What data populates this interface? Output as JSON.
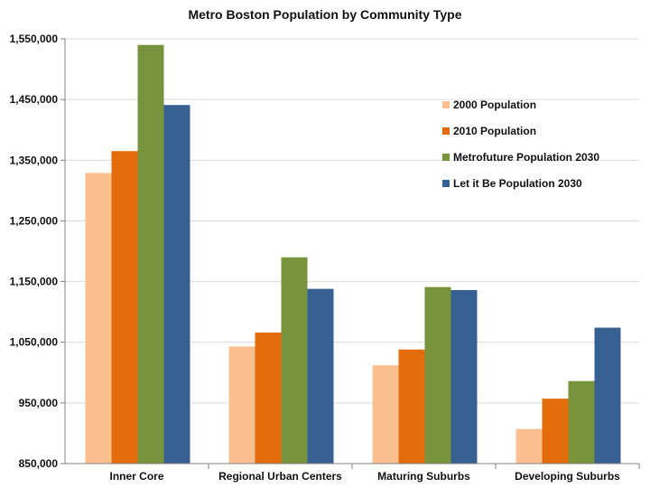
{
  "chart_data": {
    "type": "bar",
    "title": "Metro Boston Population by Community Type",
    "xlabel": "",
    "ylabel": "",
    "categories": [
      "Inner Core",
      "Regional Urban Centers",
      "Maturing Suburbs",
      "Developing Suburbs"
    ],
    "series": [
      {
        "name": "2000 Population",
        "color": "#FAC090",
        "values": [
          1329000,
          1043000,
          1012000,
          907000
        ]
      },
      {
        "name": "2010 Population",
        "color": "#E46C0A",
        "values": [
          1365000,
          1066000,
          1038000,
          957000
        ]
      },
      {
        "name": "Metrofuture Population 2030",
        "color": "#77933C",
        "values": [
          1540000,
          1190000,
          1141000,
          986000
        ]
      },
      {
        "name": "Let it Be Population 2030",
        "color": "#376092",
        "values": [
          1441000,
          1138000,
          1136000,
          1074000
        ]
      }
    ],
    "ylim": [
      850000,
      1550000
    ],
    "yticks": [
      850000,
      950000,
      1050000,
      1150000,
      1250000,
      1350000,
      1450000,
      1550000
    ],
    "ytick_labels": [
      "850,000",
      "950,000",
      "1,050,000",
      "1,150,000",
      "1,250,000",
      "1,350,000",
      "1,450,000",
      "1,550,000"
    ],
    "grid": true,
    "legend_position": "right"
  }
}
